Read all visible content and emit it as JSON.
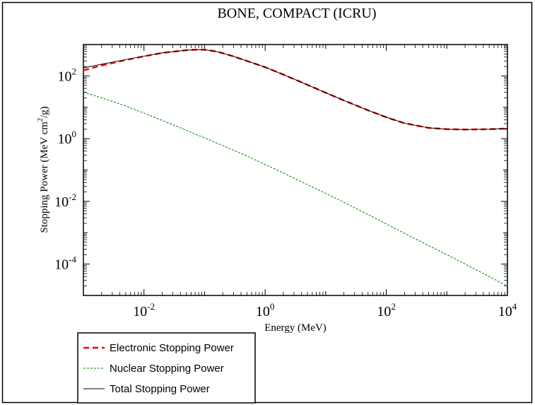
{
  "chart_data": {
    "type": "line",
    "title": "BONE, COMPACT (ICRU)",
    "xlabel": "Energy (MeV)",
    "ylabel_main": "Stopping Power (MeV cm",
    "ylabel_sup": "2",
    "ylabel_tail": "/g)",
    "xscale": "log",
    "yscale": "log",
    "xlim": [
      0.001,
      10000
    ],
    "ylim": [
      1e-05,
      1000
    ],
    "legend_position": "bottom-left, below plot",
    "x_ticks": [
      {
        "base": "10",
        "exp": "-2",
        "value": 0.01
      },
      {
        "base": "10",
        "exp": "0",
        "value": 1
      },
      {
        "base": "10",
        "exp": "2",
        "value": 100
      },
      {
        "base": "10",
        "exp": "4",
        "value": 10000
      }
    ],
    "y_ticks": [
      {
        "base": "10",
        "exp": "2",
        "value": 100
      },
      {
        "base": "10",
        "exp": "0",
        "value": 1
      },
      {
        "base": "10",
        "exp": "-2",
        "value": 0.01
      },
      {
        "base": "10",
        "exp": "-4",
        "value": 0.0001
      }
    ],
    "series": [
      {
        "name": "Electronic Stopping Power",
        "color": "#ff0000",
        "style": "dashed",
        "x": [
          0.001,
          0.002,
          0.005,
          0.01,
          0.02,
          0.05,
          0.08,
          0.1,
          0.15,
          0.2,
          0.3,
          0.5,
          1,
          2,
          5,
          10,
          20,
          50,
          100,
          200,
          500,
          1000,
          2000,
          5000,
          10000
        ],
        "y": [
          150,
          215,
          320,
          420,
          540,
          660,
          690,
          680,
          610,
          530,
          420,
          300,
          190,
          110,
          52,
          29,
          16.5,
          8,
          4.8,
          3.1,
          2.2,
          2.0,
          1.95,
          2.0,
          2.1
        ]
      },
      {
        "name": "Nuclear Stopping Power",
        "color": "#008000",
        "style": "dotted",
        "x": [
          0.001,
          0.002,
          0.005,
          0.01,
          0.02,
          0.05,
          0.1,
          0.2,
          0.5,
          1,
          2,
          5,
          10,
          20,
          50,
          100,
          200,
          500,
          1000,
          2000,
          5000,
          10000
        ],
        "y": [
          30,
          20,
          11,
          6.5,
          3.8,
          1.85,
          1.05,
          0.6,
          0.28,
          0.15,
          0.08,
          0.034,
          0.018,
          0.0093,
          0.0038,
          0.0019,
          0.00096,
          0.00039,
          0.0002,
          0.0001,
          4e-05,
          2e-05
        ]
      },
      {
        "name": "Total Stopping Power",
        "color": "#000000",
        "style": "solid",
        "x": [
          0.001,
          0.002,
          0.005,
          0.01,
          0.02,
          0.05,
          0.08,
          0.1,
          0.15,
          0.2,
          0.3,
          0.5,
          1,
          2,
          5,
          10,
          20,
          50,
          100,
          200,
          500,
          1000,
          2000,
          5000,
          10000
        ],
        "y": [
          180,
          235,
          331,
          426,
          544,
          662,
          691,
          681,
          611,
          531,
          420,
          300,
          190,
          110,
          52,
          29,
          16.5,
          8,
          4.8,
          3.1,
          2.2,
          2.0,
          1.95,
          2.0,
          2.1
        ]
      }
    ]
  }
}
